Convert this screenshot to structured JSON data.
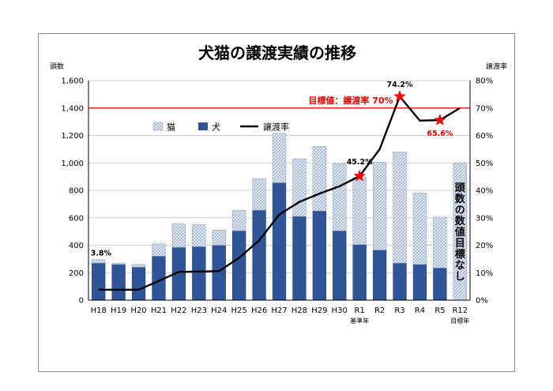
{
  "chart_data": {
    "type": "bar",
    "stacked": true,
    "title": "犬猫の譲渡実績の推移",
    "y_left_unit": "頭数",
    "y_right_unit": "譲渡率",
    "ylim_left": [
      0,
      1600
    ],
    "ylim_right": [
      0,
      80
    ],
    "yticks_left": [
      "0",
      "200",
      "400",
      "600",
      "800",
      "1,000",
      "1,200",
      "1,400",
      "1,600"
    ],
    "yticks_right": [
      "0%",
      "10%",
      "20%",
      "30%",
      "40%",
      "50%",
      "60%",
      "70%",
      "80%"
    ],
    "categories": [
      "H18",
      "H19",
      "H20",
      "H21",
      "H22",
      "H23",
      "H24",
      "H25",
      "H26",
      "H27",
      "H28",
      "H29",
      "H30",
      "R1",
      "R2",
      "R3",
      "R4",
      "R5",
      "R12"
    ],
    "category_sublabels": {
      "R1": "基準年",
      "R12": "目標年"
    },
    "series": [
      {
        "name": "猫",
        "kind": "bar",
        "color": "#bfcfe8",
        "values": [
          25,
          10,
          20,
          90,
          170,
          160,
          110,
          150,
          230,
          360,
          420,
          470,
          490,
          490,
          640,
          810,
          520,
          370,
          null
        ]
      },
      {
        "name": "犬",
        "kind": "bar",
        "color": "#2f5597",
        "values": [
          270,
          260,
          240,
          320,
          385,
          390,
          400,
          505,
          655,
          855,
          610,
          650,
          505,
          405,
          365,
          270,
          260,
          235,
          null
        ]
      },
      {
        "name": "譲渡率",
        "kind": "line",
        "axis": "right",
        "color": "#000000",
        "values": [
          3.8,
          3.8,
          3.8,
          7.0,
          10.3,
          10.4,
          10.6,
          15.4,
          21.8,
          31.2,
          35.8,
          38.8,
          41.5,
          45.2,
          55.0,
          74.2,
          65.4,
          65.6,
          70.0
        ]
      }
    ],
    "target_bar": {
      "category": "R12",
      "value": 1000,
      "label": "頭数の数値目標なし"
    },
    "target_line": {
      "value": 70,
      "label": "目標値：譲渡率 70%",
      "color": "#e60000"
    },
    "annotations": [
      {
        "category": "H18",
        "label": "3.8%"
      },
      {
        "category": "R1",
        "label": "45.2%",
        "marker": "star"
      },
      {
        "category": "R3",
        "label": "74.2%",
        "marker": "star"
      },
      {
        "category": "R5",
        "label": "65.6%",
        "marker": "star",
        "color": "#e60000"
      }
    ]
  }
}
